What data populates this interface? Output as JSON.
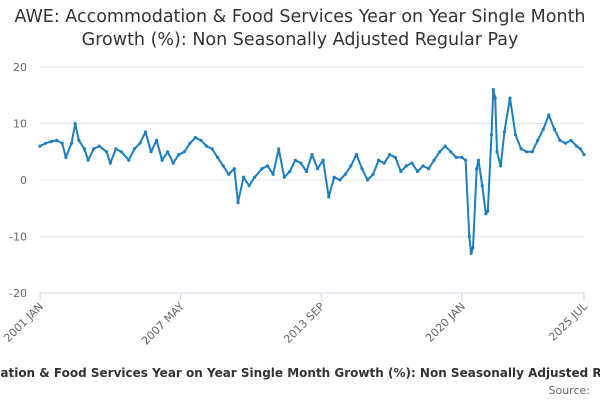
{
  "chart_data": {
    "type": "line",
    "title": "AWE: Accommodation & Food Services Year on Year Single Month Growth (%): Non Seasonally Adjusted Regular Pay",
    "xlabel": "",
    "ylabel": "",
    "ylim": [
      -20,
      20
    ],
    "y_ticks": [
      "20",
      "10",
      "0",
      "-10",
      "-20"
    ],
    "x_range": [
      "2001-01",
      "2025-07"
    ],
    "x_ticks": [
      {
        "date": "2001-01",
        "label": "2001 JAN"
      },
      {
        "date": "2007-05",
        "label": "2007 MAY"
      },
      {
        "date": "2013-09",
        "label": "2013 SEP"
      },
      {
        "date": "2020-01",
        "label": "2020 JAN"
      },
      {
        "date": "2025-07",
        "label": "2025 JUL"
      }
    ],
    "grid": true,
    "legend": "bottom",
    "legend_label": "Accommodation & Food Services Year on Year Single Month Growth (%): Non Seasonally Adjusted Regular Pay",
    "source_label": "Source:",
    "series": [
      {
        "name": "Accommodation & Food Services Year on Year Single Month Growth (%): Non Seasonally Adjusted Regular Pay",
        "color": "#1a7ebf",
        "points": [
          [
            "2001-01",
            6.0
          ],
          [
            "2001-04",
            6.5
          ],
          [
            "2001-07",
            6.8
          ],
          [
            "2001-10",
            7.0
          ],
          [
            "2002-01",
            6.5
          ],
          [
            "2002-03",
            4.0
          ],
          [
            "2002-06",
            6.5
          ],
          [
            "2002-08",
            10.0
          ],
          [
            "2002-10",
            7.0
          ],
          [
            "2003-01",
            5.5
          ],
          [
            "2003-03",
            3.5
          ],
          [
            "2003-06",
            5.5
          ],
          [
            "2003-09",
            6.0
          ],
          [
            "2004-01",
            5.0
          ],
          [
            "2004-03",
            3.0
          ],
          [
            "2004-06",
            5.5
          ],
          [
            "2004-09",
            5.0
          ],
          [
            "2005-01",
            3.5
          ],
          [
            "2005-04",
            5.5
          ],
          [
            "2005-07",
            6.5
          ],
          [
            "2005-10",
            8.5
          ],
          [
            "2006-01",
            5.0
          ],
          [
            "2006-04",
            7.0
          ],
          [
            "2006-07",
            3.5
          ],
          [
            "2006-10",
            5.0
          ],
          [
            "2007-01",
            3.0
          ],
          [
            "2007-04",
            4.5
          ],
          [
            "2007-07",
            5.0
          ],
          [
            "2007-10",
            6.5
          ],
          [
            "2008-01",
            7.5
          ],
          [
            "2008-04",
            7.0
          ],
          [
            "2008-07",
            6.0
          ],
          [
            "2008-10",
            5.5
          ],
          [
            "2009-01",
            4.0
          ],
          [
            "2009-04",
            2.5
          ],
          [
            "2009-07",
            1.0
          ],
          [
            "2009-10",
            2.0
          ],
          [
            "2009-12",
            -4.0
          ],
          [
            "2010-03",
            0.5
          ],
          [
            "2010-06",
            -1.0
          ],
          [
            "2010-09",
            0.5
          ],
          [
            "2011-01",
            2.0
          ],
          [
            "2011-04",
            2.5
          ],
          [
            "2011-07",
            1.0
          ],
          [
            "2011-10",
            5.5
          ],
          [
            "2012-01",
            0.5
          ],
          [
            "2012-04",
            1.5
          ],
          [
            "2012-07",
            3.5
          ],
          [
            "2012-10",
            3.0
          ],
          [
            "2013-01",
            1.5
          ],
          [
            "2013-04",
            4.5
          ],
          [
            "2013-07",
            2.0
          ],
          [
            "2013-10",
            3.5
          ],
          [
            "2014-01",
            -3.0
          ],
          [
            "2014-04",
            0.5
          ],
          [
            "2014-07",
            0.0
          ],
          [
            "2014-10",
            1.0
          ],
          [
            "2015-01",
            2.5
          ],
          [
            "2015-04",
            4.5
          ],
          [
            "2015-07",
            2.0
          ],
          [
            "2015-10",
            0.0
          ],
          [
            "2016-01",
            1.0
          ],
          [
            "2016-04",
            3.5
          ],
          [
            "2016-07",
            3.0
          ],
          [
            "2016-10",
            4.5
          ],
          [
            "2017-01",
            4.0
          ],
          [
            "2017-04",
            1.5
          ],
          [
            "2017-07",
            2.5
          ],
          [
            "2017-10",
            3.0
          ],
          [
            "2018-01",
            1.5
          ],
          [
            "2018-04",
            2.5
          ],
          [
            "2018-07",
            2.0
          ],
          [
            "2018-10",
            3.5
          ],
          [
            "2019-01",
            5.0
          ],
          [
            "2019-04",
            6.0
          ],
          [
            "2019-07",
            5.0
          ],
          [
            "2019-10",
            4.0
          ],
          [
            "2020-01",
            4.0
          ],
          [
            "2020-03",
            3.5
          ],
          [
            "2020-05",
            -10.0
          ],
          [
            "2020-06",
            -13.0
          ],
          [
            "2020-07",
            -12.0
          ],
          [
            "2020-09",
            2.0
          ],
          [
            "2020-10",
            3.5
          ],
          [
            "2020-12",
            -1.0
          ],
          [
            "2021-02",
            -6.0
          ],
          [
            "2021-03",
            -5.5
          ],
          [
            "2021-05",
            8.0
          ],
          [
            "2021-06",
            16.0
          ],
          [
            "2021-07",
            14.5
          ],
          [
            "2021-08",
            5.0
          ],
          [
            "2021-10",
            2.5
          ],
          [
            "2021-12",
            8.5
          ],
          [
            "2022-03",
            14.5
          ],
          [
            "2022-06",
            8.0
          ],
          [
            "2022-09",
            5.5
          ],
          [
            "2022-12",
            5.0
          ],
          [
            "2023-03",
            5.0
          ],
          [
            "2023-06",
            7.0
          ],
          [
            "2023-09",
            9.0
          ],
          [
            "2023-12",
            11.5
          ],
          [
            "2024-03",
            9.0
          ],
          [
            "2024-06",
            7.0
          ],
          [
            "2024-09",
            6.5
          ],
          [
            "2024-12",
            7.0
          ],
          [
            "2025-03",
            6.0
          ],
          [
            "2025-05",
            5.5
          ],
          [
            "2025-07",
            4.5
          ]
        ]
      }
    ]
  }
}
